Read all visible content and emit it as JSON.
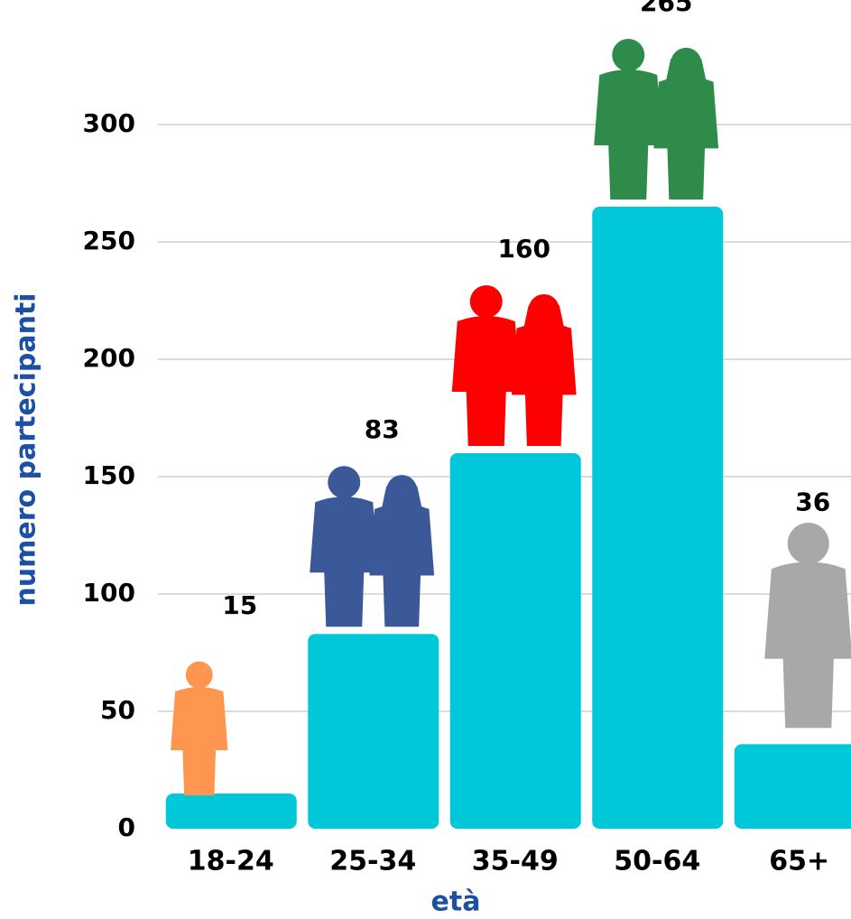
{
  "chart_data": {
    "type": "bar",
    "x_label": "età",
    "y_label": "numero partecipanti",
    "categories": [
      "18-24",
      "25-34",
      "35-49",
      "50-64",
      "65+"
    ],
    "values": [
      15,
      83,
      160,
      265,
      36
    ],
    "color": "#00c8d8",
    "ylim": [
      0,
      300
    ],
    "yticks": [
      0,
      50,
      100,
      150,
      200,
      250,
      300
    ],
    "grid": true
  }
}
